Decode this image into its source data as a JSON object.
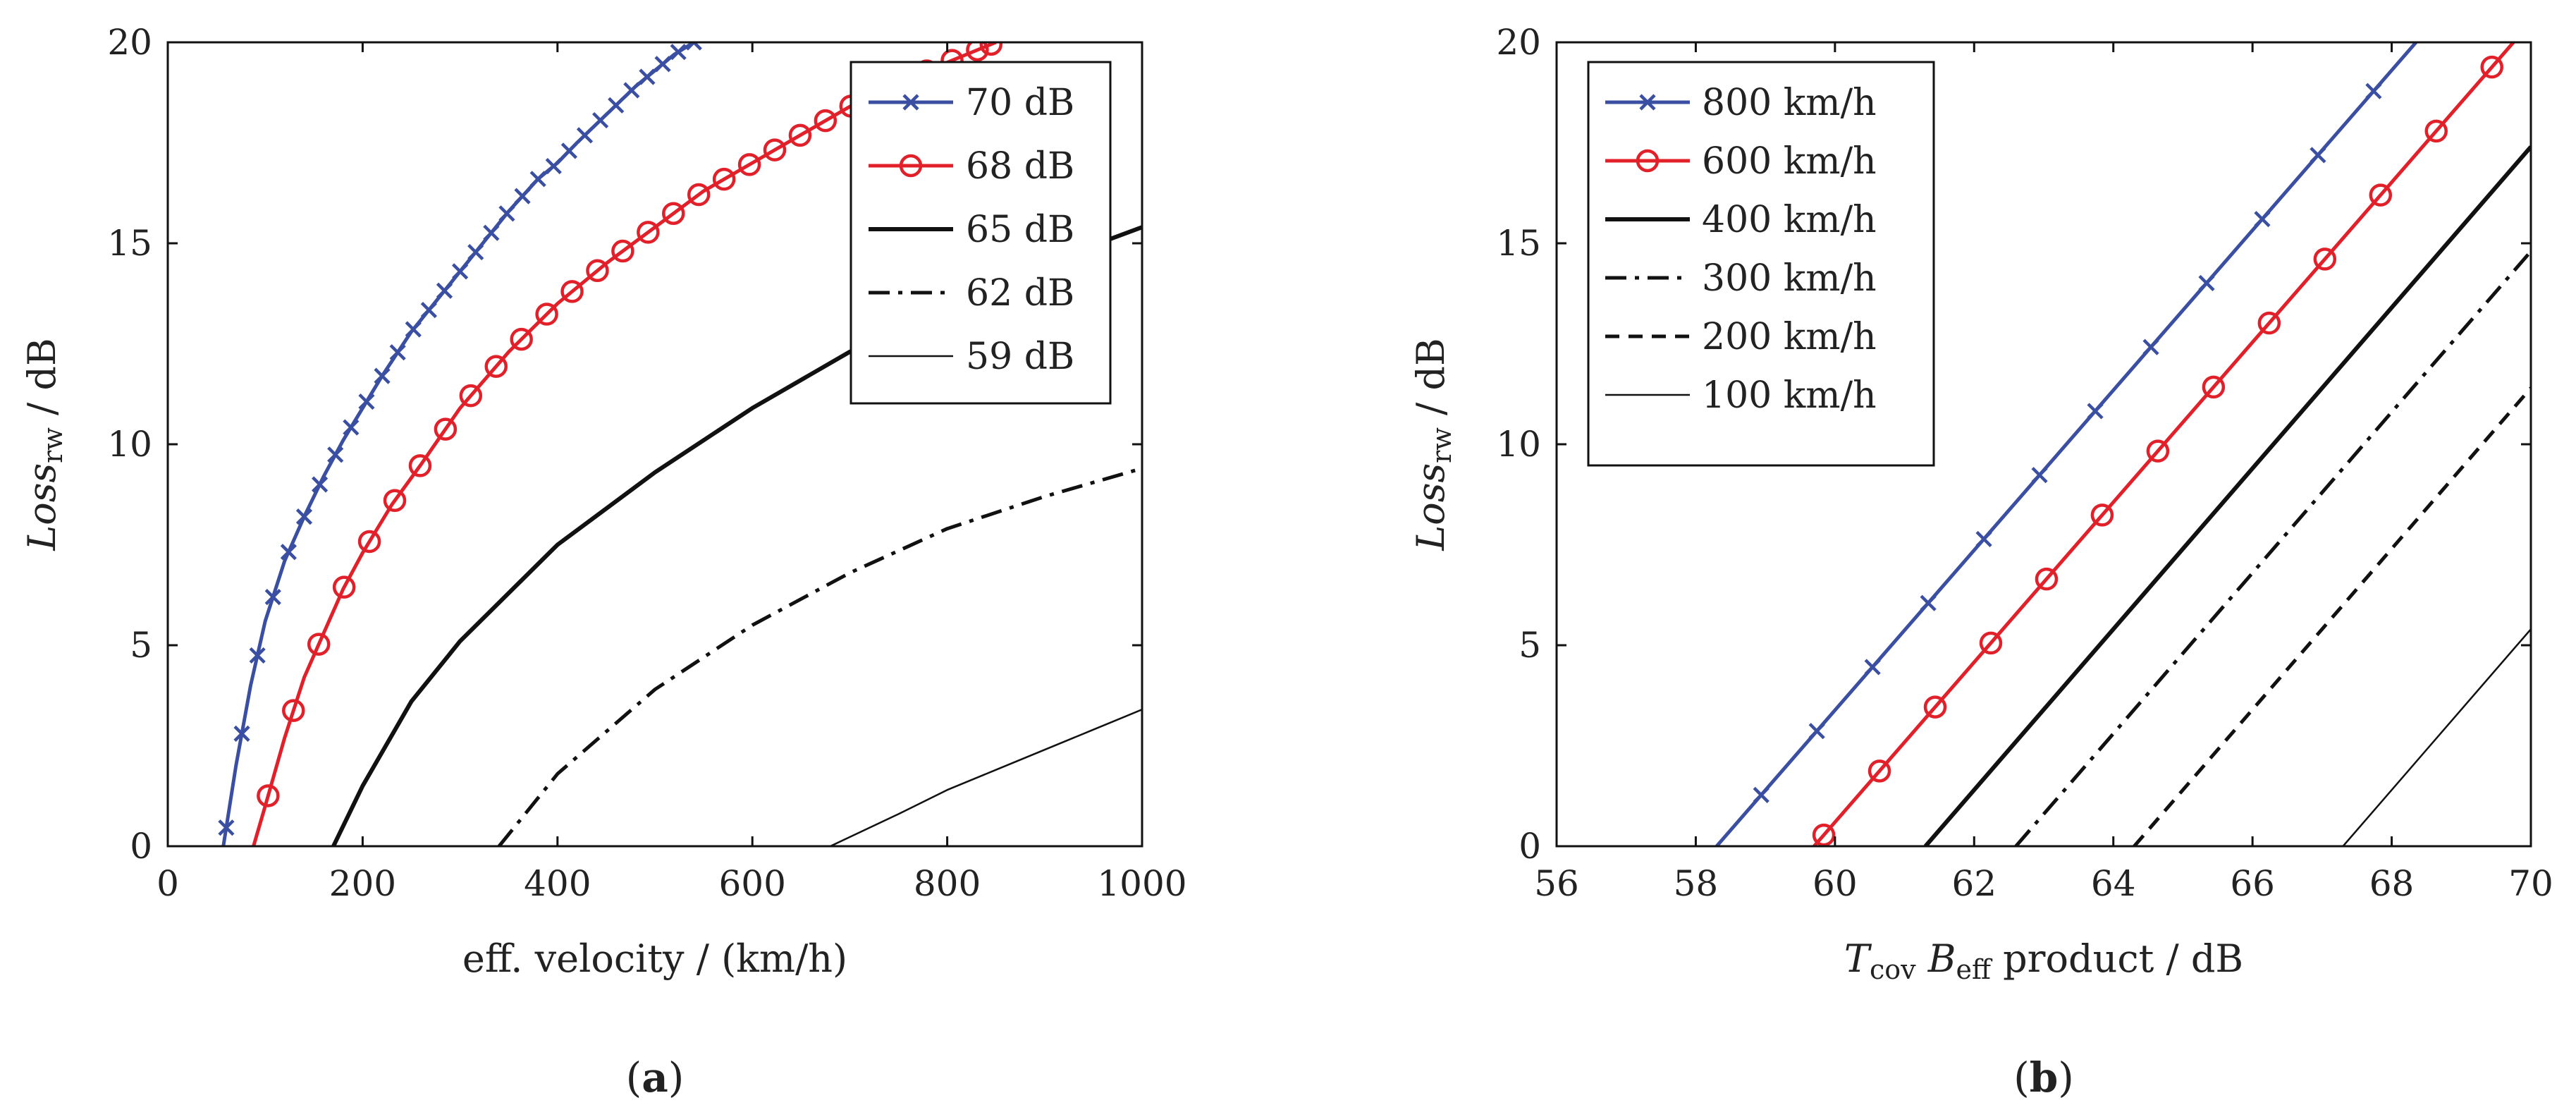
{
  "chart_data": [
    {
      "type": "line",
      "panel": "(a)",
      "panel_bold": "a",
      "xlabel": "eff. velocity / (km/h)",
      "ylabel_main": "Loss",
      "ylabel_sub": "rw",
      "ylabel_tail": " / dB",
      "xlim": [
        0,
        1000
      ],
      "ylim": [
        0,
        20
      ],
      "xticks": [
        0,
        200,
        400,
        600,
        800,
        1000
      ],
      "yticks": [
        0,
        5,
        10,
        15,
        20
      ],
      "legend_position": "top-right",
      "series": [
        {
          "name": "70 dB",
          "color": "#3a4fa2",
          "style": "solid",
          "marker": "x",
          "x": [
            57,
            70,
            85,
            100,
            120,
            140,
            160,
            180,
            200,
            220,
            250,
            280,
            300,
            320,
            350,
            380,
            400,
            420,
            450,
            480,
            500,
            520,
            540
          ],
          "y": [
            0,
            2.0,
            4.0,
            5.6,
            7.1,
            8.2,
            9.2,
            10.1,
            10.9,
            11.7,
            12.8,
            13.7,
            14.3,
            14.9,
            15.8,
            16.6,
            17.0,
            17.5,
            18.2,
            18.9,
            19.3,
            19.7,
            20.0
          ]
        },
        {
          "name": "68 dB",
          "color": "#e1202a",
          "style": "solid",
          "marker": "o",
          "x": [
            88,
            100,
            120,
            140,
            160,
            180,
            200,
            230,
            260,
            300,
            350,
            400,
            450,
            500,
            550,
            600,
            650,
            700,
            750,
            800,
            850
          ],
          "y": [
            0,
            1.0,
            2.7,
            4.2,
            5.3,
            6.4,
            7.3,
            8.5,
            9.5,
            10.9,
            12.3,
            13.5,
            14.5,
            15.4,
            16.3,
            17.0,
            17.7,
            18.4,
            19.0,
            19.5,
            20.0
          ]
        },
        {
          "name": "65 dB",
          "color": "#111111",
          "style": "solid-thick",
          "marker": "none",
          "x": [
            170,
            200,
            250,
            300,
            400,
            500,
            600,
            700,
            800,
            900,
            1000
          ],
          "y": [
            0,
            1.5,
            3.6,
            5.1,
            7.5,
            9.3,
            10.9,
            12.3,
            13.5,
            14.5,
            15.4
          ]
        },
        {
          "name": "62 dB",
          "color": "#111111",
          "style": "dashdot",
          "marker": "none",
          "x": [
            340,
            400,
            500,
            600,
            700,
            800,
            900,
            1000
          ],
          "y": [
            0,
            1.8,
            3.9,
            5.5,
            6.8,
            7.9,
            8.7,
            9.4
          ]
        },
        {
          "name": "59 dB",
          "color": "#111111",
          "style": "solid-thin",
          "marker": "none",
          "x": [
            680,
            750,
            800,
            850,
            900,
            950,
            1000
          ],
          "y": [
            0,
            0.8,
            1.4,
            1.9,
            2.4,
            2.9,
            3.4
          ]
        }
      ],
      "marker_x": {
        "70 dB": [
          60,
          76,
          92,
          108,
          124,
          140,
          156,
          172,
          188,
          204,
          220,
          236,
          252,
          268,
          284,
          300,
          316,
          332,
          348,
          364,
          380,
          396,
          412,
          428,
          444,
          460,
          476,
          492,
          508,
          524,
          540
        ],
        "68 dB": [
          103,
          129,
          155,
          181,
          207,
          233,
          259,
          285,
          311,
          337,
          363,
          389,
          415,
          441,
          467,
          493,
          519,
          545,
          571,
          597,
          623,
          649,
          675,
          701,
          727,
          753,
          779,
          805,
          831,
          845
        ]
      }
    },
    {
      "type": "line",
      "panel": "(b)",
      "panel_bold": "b",
      "xlabel_T": "T",
      "xlabel_Tsub": "cov",
      "xlabel_B": "B",
      "xlabel_Bsub": "eff",
      "xlabel_tail": " product / dB",
      "ylabel_main": "Loss",
      "ylabel_sub": "rw",
      "ylabel_tail": " / dB",
      "xlim": [
        56,
        70
      ],
      "ylim": [
        0,
        20
      ],
      "xticks": [
        56,
        58,
        60,
        62,
        64,
        66,
        68,
        70
      ],
      "yticks": [
        0,
        5,
        10,
        15,
        20
      ],
      "legend_position": "top-left",
      "series": [
        {
          "name": "800 km/h",
          "color": "#3a4fa2",
          "style": "solid",
          "marker": "x",
          "x": [
            58.3,
            68.35
          ],
          "y": [
            0,
            20
          ]
        },
        {
          "name": "600 km/h",
          "color": "#e1202a",
          "style": "solid",
          "marker": "o",
          "x": [
            59.7,
            69.75
          ],
          "y": [
            0,
            20
          ]
        },
        {
          "name": "400 km/h",
          "color": "#111111",
          "style": "solid-thick",
          "marker": "none",
          "x": [
            61.3,
            70
          ],
          "y": [
            0,
            17.4
          ]
        },
        {
          "name": "300 km/h",
          "color": "#111111",
          "style": "dashdot",
          "marker": "none",
          "x": [
            62.6,
            70
          ],
          "y": [
            0,
            14.8
          ]
        },
        {
          "name": "200 km/h",
          "color": "#111111",
          "style": "dashed",
          "marker": "none",
          "x": [
            64.3,
            70
          ],
          "y": [
            0,
            11.4
          ]
        },
        {
          "name": "100 km/h",
          "color": "#111111",
          "style": "solid-thin",
          "marker": "none",
          "x": [
            67.3,
            70
          ],
          "y": [
            0,
            5.4
          ]
        }
      ],
      "marker_x": {
        "800 km/h": [
          58.94,
          59.74,
          60.54,
          61.34,
          62.14,
          62.94,
          63.74,
          64.54,
          65.34,
          66.14,
          66.94,
          67.74
        ],
        "600 km/h": [
          59.84,
          60.64,
          61.44,
          62.24,
          63.04,
          63.84,
          64.64,
          65.44,
          66.24,
          67.04,
          67.84,
          68.64,
          69.44
        ]
      }
    }
  ]
}
